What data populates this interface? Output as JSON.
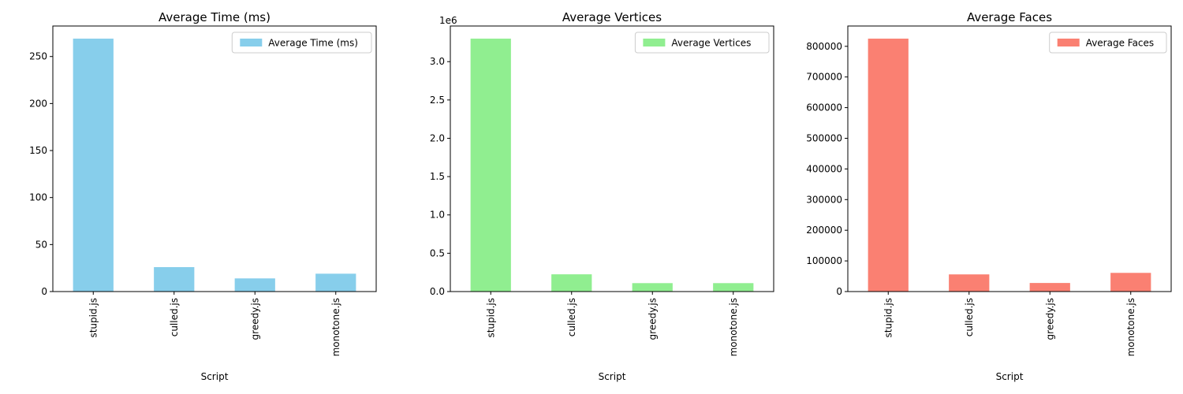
{
  "chart_data": [
    {
      "type": "bar",
      "title": "Average Time (ms)",
      "xlabel": "Script",
      "ylabel": "",
      "categories": [
        "stupid.js",
        "culled.js",
        "greedy.js",
        "monotone.js"
      ],
      "series": [
        {
          "name": "Average Time (ms)",
          "values": [
            269,
            26,
            14,
            19
          ],
          "color": "#87CEEB"
        }
      ],
      "ylim": [
        0,
        282.45
      ],
      "yticks": [
        0,
        50,
        100,
        150,
        200,
        250
      ],
      "ytick_labels": [
        "0",
        "50",
        "100",
        "150",
        "200",
        "250"
      ],
      "offset_text": "",
      "legend": "top-right",
      "grid": false
    },
    {
      "type": "bar",
      "title": "Average Vertices",
      "xlabel": "Script",
      "ylabel": "",
      "categories": [
        "stupid.js",
        "culled.js",
        "greedy.js",
        "monotone.js"
      ],
      "series": [
        {
          "name": "Average Vertices",
          "values": [
            3300000,
            225000,
            110000,
            110000
          ],
          "color": "#90EE90"
        }
      ],
      "ylim": [
        0,
        3465000
      ],
      "yticks": [
        0,
        500000,
        1000000,
        1500000,
        2000000,
        2500000,
        3000000
      ],
      "ytick_labels": [
        "0.0",
        "0.5",
        "1.0",
        "1.5",
        "2.0",
        "2.5",
        "3.0"
      ],
      "offset_text": "1e6",
      "legend": "top-right",
      "grid": false
    },
    {
      "type": "bar",
      "title": "Average Faces",
      "xlabel": "Script",
      "ylabel": "",
      "categories": [
        "stupid.js",
        "culled.js",
        "greedy.js",
        "monotone.js"
      ],
      "series": [
        {
          "name": "Average Faces",
          "values": [
            825000,
            56000,
            28000,
            61000
          ],
          "color": "#FA8072"
        }
      ],
      "ylim": [
        0,
        866250
      ],
      "yticks": [
        0,
        100000,
        200000,
        300000,
        400000,
        500000,
        600000,
        700000,
        800000
      ],
      "ytick_labels": [
        "0",
        "100000",
        "200000",
        "300000",
        "400000",
        "500000",
        "600000",
        "700000",
        "800000"
      ],
      "offset_text": "",
      "legend": "top-right",
      "grid": false
    }
  ]
}
